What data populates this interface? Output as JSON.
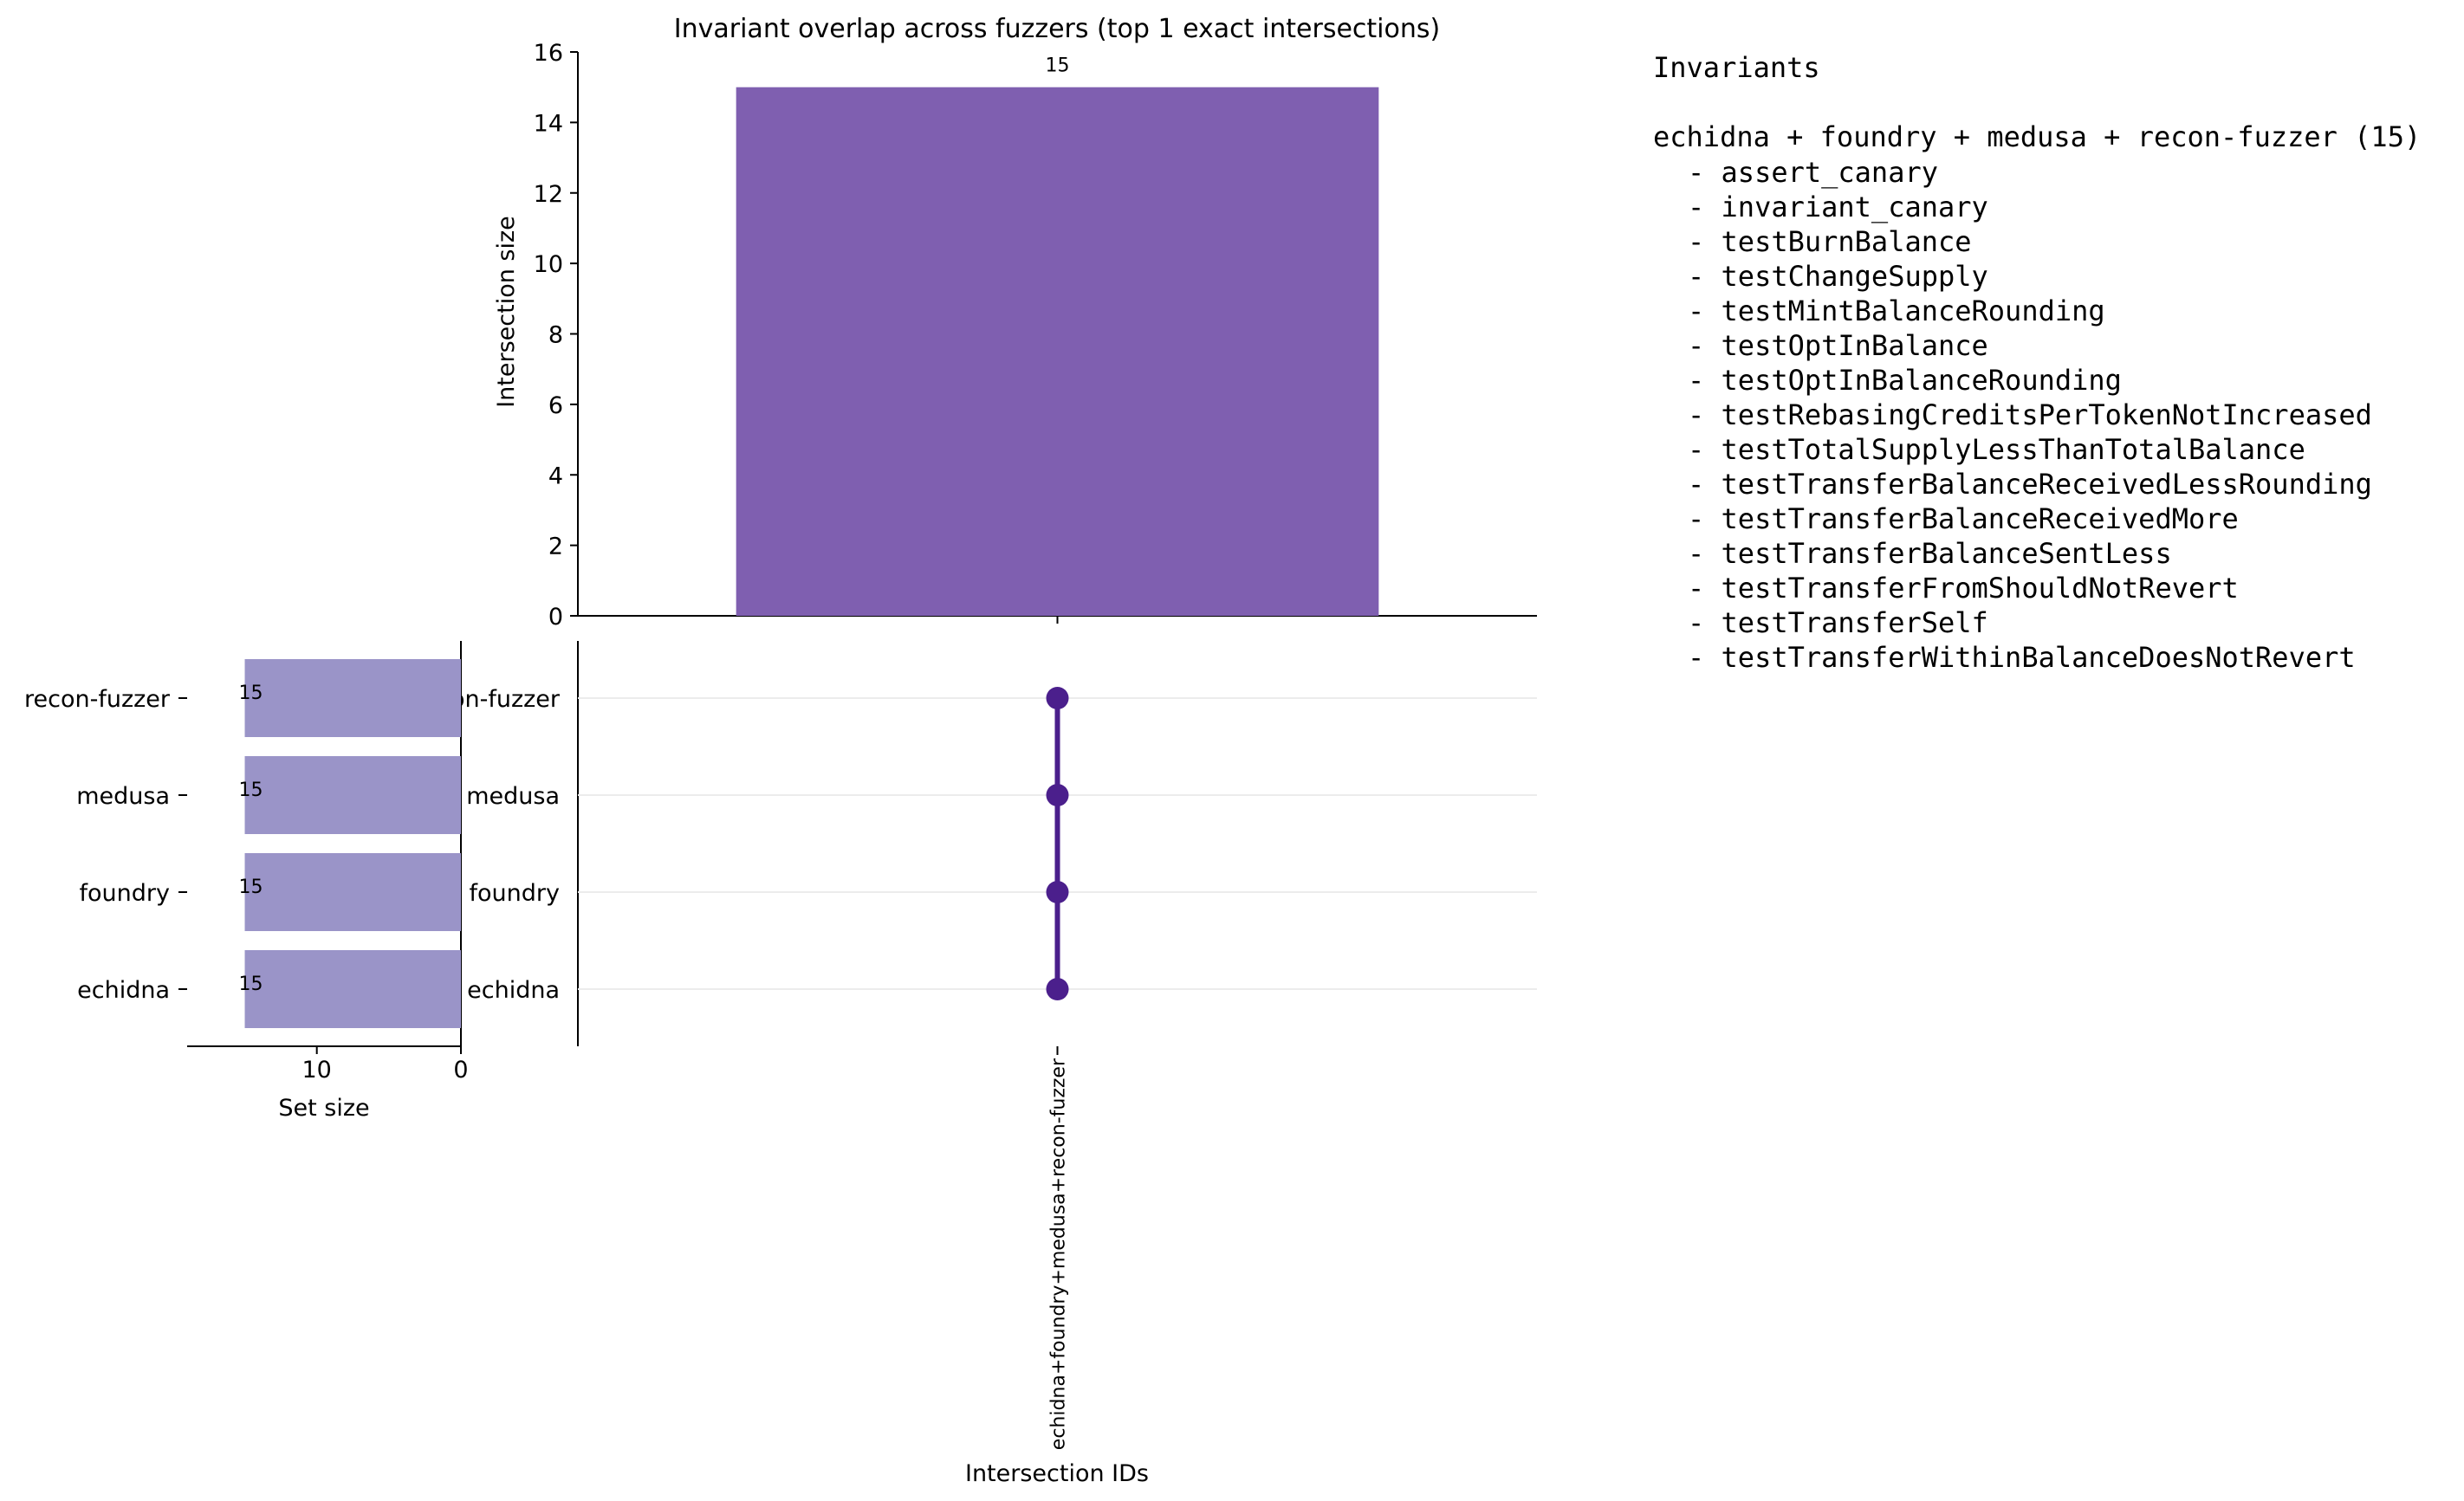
{
  "chart_data": {
    "type": "bar",
    "subtype": "upset",
    "title": "Invariant overlap across fuzzers (top 1 exact intersections)",
    "intersections": {
      "ylabel": "Intersection size",
      "xlabel": "Intersection IDs",
      "ylim": [
        0,
        16
      ],
      "yticks": [
        0,
        2,
        4,
        6,
        8,
        10,
        12,
        14,
        16
      ],
      "categories": [
        "echidna+foundry+medusa+recon-fuzzer"
      ],
      "values": [
        15
      ],
      "bar_color": "#7f5fb0",
      "members": [
        [
          "recon-fuzzer",
          "medusa",
          "foundry",
          "echidna"
        ]
      ]
    },
    "sets": {
      "xlabel": "Set size",
      "names": [
        "recon-fuzzer",
        "medusa",
        "foundry",
        "echidna"
      ],
      "values": [
        15,
        15,
        15,
        15
      ],
      "xlim": [
        0,
        19
      ],
      "xticks": [
        10,
        0
      ],
      "bar_color": "#9a94c8"
    },
    "matrix_color": "#4b1f8c",
    "grid": false
  },
  "legend": {
    "heading": "Invariants",
    "group_title": "echidna + foundry + medusa + recon-fuzzer (15)",
    "items": [
      "assert_canary",
      "invariant_canary",
      "testBurnBalance",
      "testChangeSupply",
      "testMintBalanceRounding",
      "testOptInBalance",
      "testOptInBalanceRounding",
      "testRebasingCreditsPerTokenNotIncreased",
      "testTotalSupplyLessThanTotalBalance",
      "testTransferBalanceReceivedLessRounding",
      "testTransferBalanceReceivedMore",
      "testTransferBalanceSentLess",
      "testTransferFromShouldNotRevert",
      "testTransferSelf",
      "testTransferWithinBalanceDoesNotRevert"
    ]
  }
}
